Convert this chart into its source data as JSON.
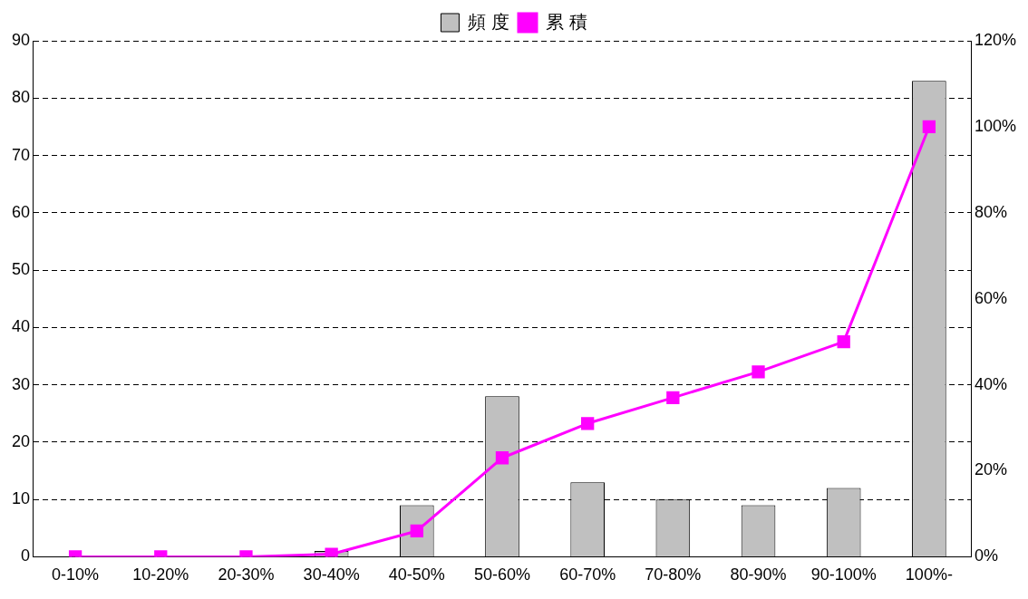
{
  "chart_data": {
    "type": "bar",
    "categories": [
      "0-10%",
      "10-20%",
      "20-30%",
      "30-40%",
      "40-50%",
      "50-60%",
      "60-70%",
      "70-80%",
      "80-90%",
      "90-100%",
      "100%-"
    ],
    "series": [
      {
        "name": "頻 度",
        "color": "#c0c0c0",
        "values": [
          0,
          0,
          0,
          1,
          9,
          28,
          13,
          10,
          9,
          12,
          83
        ]
      },
      {
        "name": "累 積",
        "type": "line",
        "axis": "y2",
        "color": "#ff00ff",
        "marker": "square",
        "values": [
          0,
          0,
          0,
          0.6,
          6,
          23,
          31,
          37,
          43,
          50,
          100
        ]
      }
    ],
    "ylim": [
      0,
      90
    ],
    "yticks": [
      0,
      10,
      20,
      30,
      40,
      50,
      60,
      70,
      80,
      90
    ],
    "y2lim": [
      0,
      120
    ],
    "y2ticks": [
      {
        "value": 0,
        "label": "0%"
      },
      {
        "value": 20,
        "label": "20%"
      },
      {
        "value": 40,
        "label": "40%"
      },
      {
        "value": 60,
        "label": "60%"
      },
      {
        "value": 80,
        "label": "80%"
      },
      {
        "value": 100,
        "label": "100%"
      },
      {
        "value": 120,
        "label": "120%"
      }
    ],
    "grid": "y",
    "legend": "top"
  }
}
